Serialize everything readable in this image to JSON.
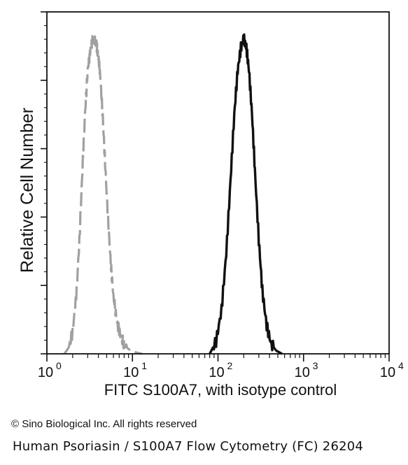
{
  "chart_data": {
    "type": "line",
    "title": "",
    "xlabel": "FITC  S100A7,  with isotype control",
    "ylabel": "Relative Cell Number",
    "x_scale": "log",
    "xlim": [
      1,
      10000
    ],
    "ylim": [
      0,
      1
    ],
    "x_ticks": [
      {
        "value": 1,
        "base": "10",
        "exp": "0"
      },
      {
        "value": 10,
        "base": "10",
        "exp": "1"
      },
      {
        "value": 100,
        "base": "10",
        "exp": "2"
      },
      {
        "value": 1000,
        "base": "10",
        "exp": "3"
      },
      {
        "value": 10000,
        "base": "10",
        "exp": "4"
      }
    ],
    "grid": false,
    "legend": "none",
    "series": [
      {
        "style": "dashed",
        "color": "#a0a0a0",
        "x": [
          1.6,
          1.8,
          2.0,
          2.2,
          2.4,
          2.6,
          2.8,
          3.0,
          3.2,
          3.4,
          3.6,
          3.8,
          4.0,
          4.2,
          4.5,
          4.8,
          5.2,
          5.6,
          6.0,
          6.6,
          7.2,
          8.0,
          9.0,
          10.0,
          11.5,
          13.0
        ],
        "y": [
          0.0,
          0.02,
          0.07,
          0.18,
          0.36,
          0.58,
          0.77,
          0.9,
          0.96,
          0.99,
          1.0,
          0.98,
          0.94,
          0.88,
          0.75,
          0.6,
          0.42,
          0.28,
          0.18,
          0.1,
          0.06,
          0.03,
          0.015,
          0.008,
          0.003,
          0.0
        ]
      },
      {
        "style": "solid",
        "color": "#111111",
        "x": [
          80,
          95,
          110,
          125,
          140,
          155,
          170,
          185,
          200,
          215,
          230,
          250,
          270,
          300,
          330,
          370,
          420,
          480,
          560
        ],
        "y": [
          0.0,
          0.04,
          0.14,
          0.32,
          0.55,
          0.76,
          0.9,
          0.97,
          1.0,
          0.97,
          0.9,
          0.76,
          0.58,
          0.36,
          0.2,
          0.09,
          0.03,
          0.01,
          0.0
        ]
      }
    ]
  },
  "footer": {
    "copyright": "© Sino Biological Inc. All rights reserved",
    "caption": "Human Psoriasin / S100A7 Flow Cytometry (FC) 26204"
  }
}
